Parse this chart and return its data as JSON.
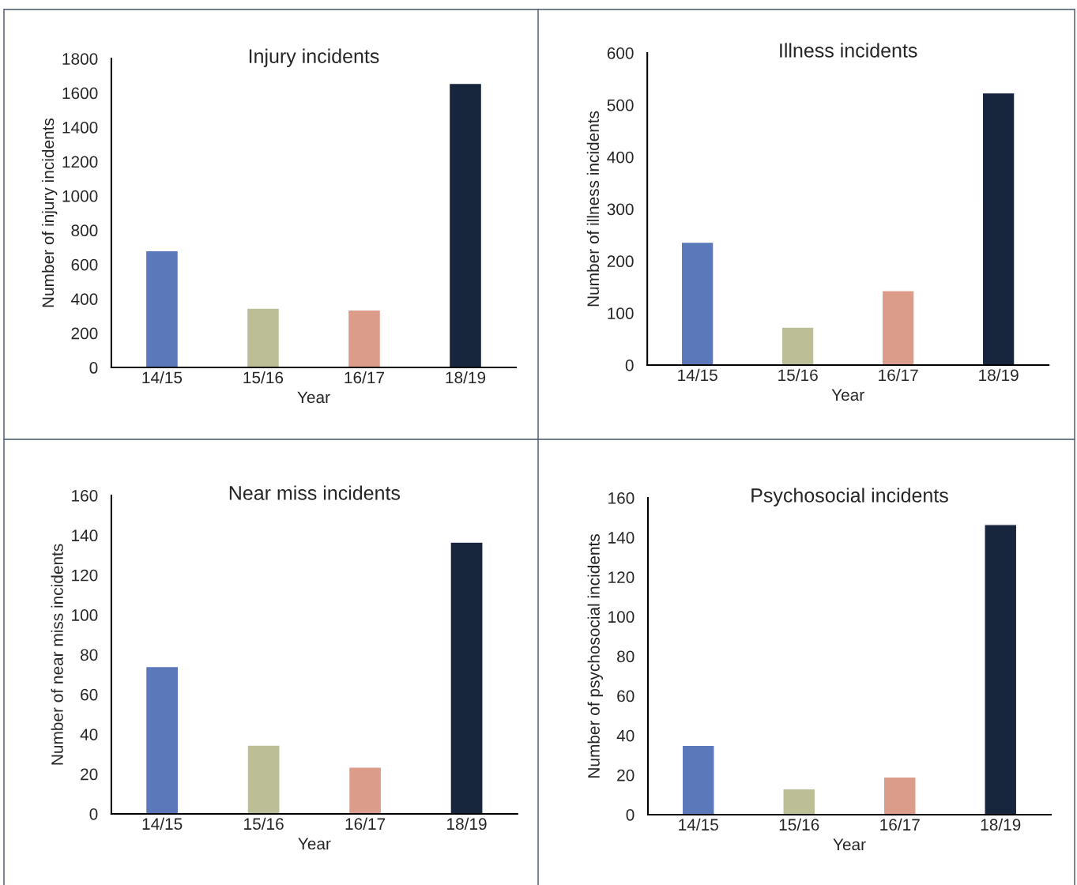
{
  "chart_data": [
    {
      "type": "bar",
      "title": "Injury incidents",
      "xlabel": "Year",
      "ylabel": "Number of injury incidents",
      "categories": [
        "14/15",
        "15/16",
        "16/17",
        "18/19"
      ],
      "values": [
        680,
        345,
        335,
        1655
      ],
      "colors": [
        "#5b78bb",
        "#bcbf96",
        "#dc9c8a",
        "#17253d"
      ],
      "ylim": [
        0,
        1800
      ],
      "yticks": [
        0,
        200,
        400,
        600,
        800,
        1000,
        1200,
        1400,
        1600,
        1800
      ],
      "grid": false,
      "legend": false
    },
    {
      "type": "bar",
      "title": "Illness incidents",
      "xlabel": "Year",
      "ylabel": "Number of illness incidents",
      "categories": [
        "14/15",
        "15/16",
        "16/17",
        "18/19"
      ],
      "values": [
        236,
        73,
        143,
        523
      ],
      "colors": [
        "#5b78bb",
        "#bcbf96",
        "#dc9c8a",
        "#17253d"
      ],
      "ylim": [
        0,
        600
      ],
      "yticks": [
        0,
        100,
        200,
        300,
        400,
        500,
        600
      ],
      "grid": false,
      "legend": false
    },
    {
      "type": "bar",
      "title": "Near miss incidents",
      "xlabel": "Year",
      "ylabel": "Number of near miss incidents",
      "categories": [
        "14/15",
        "15/16",
        "16/17",
        "18/19"
      ],
      "values": [
        74,
        34.5,
        23.5,
        136.5
      ],
      "colors": [
        "#5b78bb",
        "#bcbf96",
        "#dc9c8a",
        "#17253d"
      ],
      "ylim": [
        0,
        160
      ],
      "yticks": [
        0,
        20,
        40,
        60,
        80,
        100,
        120,
        140,
        160
      ],
      "grid": false,
      "legend": false
    },
    {
      "type": "bar",
      "title": "Psychosocial incidents",
      "xlabel": "Year",
      "ylabel": "Number of psychosocial incidents",
      "categories": [
        "14/15",
        "15/16",
        "16/17",
        "18/19"
      ],
      "values": [
        35,
        13,
        19,
        146.5
      ],
      "colors": [
        "#5b78bb",
        "#bcbf96",
        "#dc9c8a",
        "#17253d"
      ],
      "ylim": [
        0,
        160
      ],
      "yticks": [
        0,
        20,
        40,
        60,
        80,
        100,
        120,
        140,
        160
      ],
      "grid": false,
      "legend": false
    }
  ]
}
